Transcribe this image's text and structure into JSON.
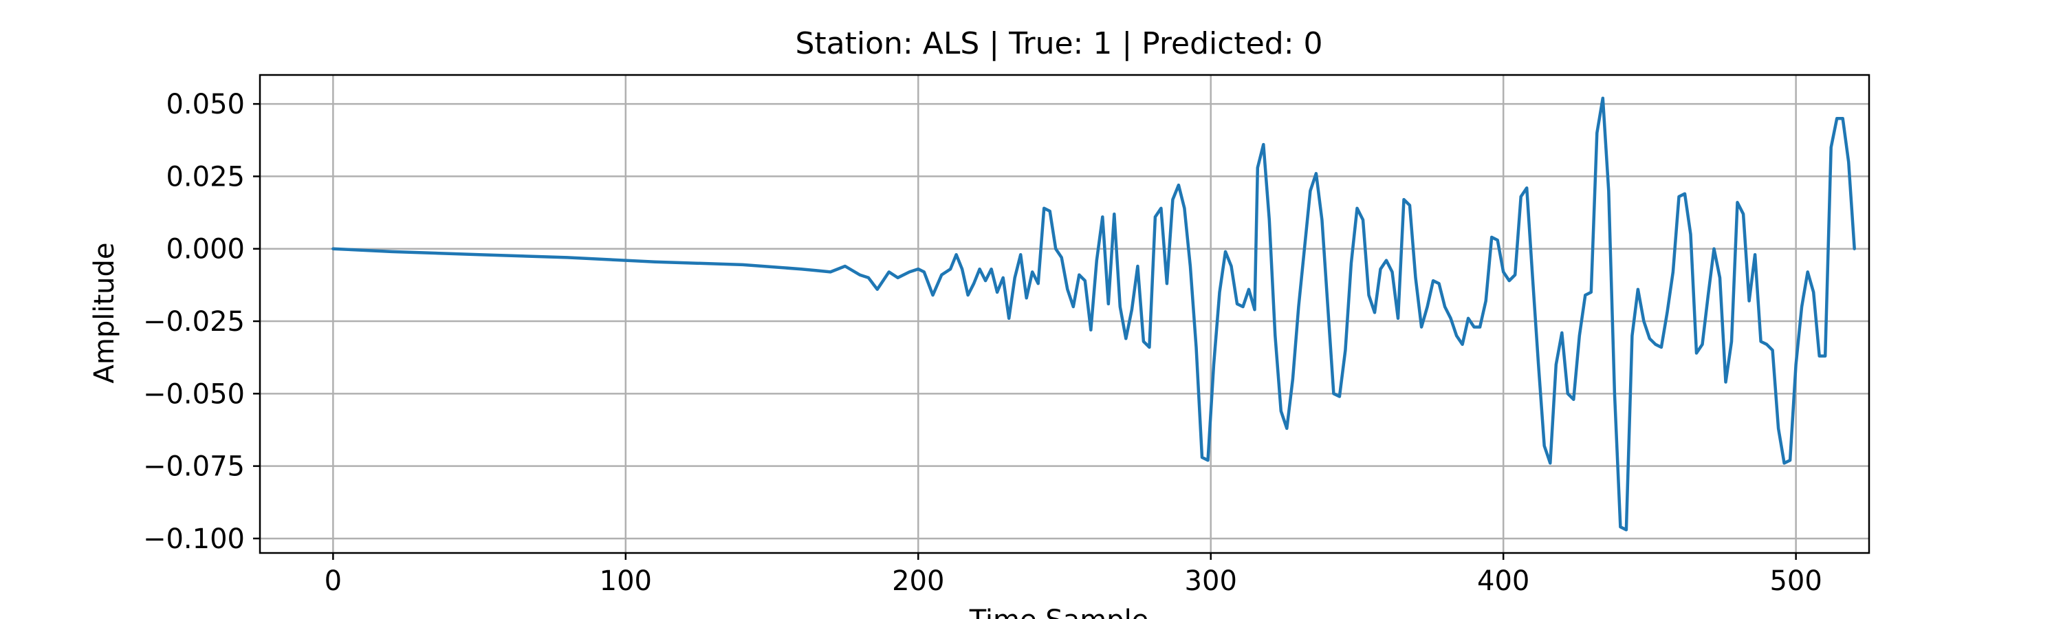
{
  "chart_data": {
    "type": "line",
    "title": "Station: ALS | True: 1 | Predicted: 0",
    "xlabel": "Time Sample",
    "ylabel": "Amplitude",
    "xlim": [
      -25,
      525
    ],
    "ylim": [
      -0.105,
      0.06
    ],
    "grid": true,
    "x_ticks": [
      0,
      100,
      200,
      300,
      400,
      500
    ],
    "x_tick_labels": [
      "0",
      "100",
      "200",
      "300",
      "400",
      "500"
    ],
    "y_ticks": [
      0.05,
      0.025,
      0.0,
      -0.025,
      -0.05,
      -0.075,
      -0.1
    ],
    "y_tick_labels": [
      "0.050",
      "0.025",
      "0.000",
      "−0.025",
      "−0.050",
      "−0.075",
      "−0.100"
    ],
    "series": [
      {
        "color": "#1f77b4",
        "points": [
          [
            0,
            0.0
          ],
          [
            20,
            -0.001
          ],
          [
            50,
            -0.002
          ],
          [
            80,
            -0.003
          ],
          [
            110,
            -0.0045
          ],
          [
            140,
            -0.0055
          ],
          [
            160,
            -0.007
          ],
          [
            165,
            -0.0075
          ],
          [
            170,
            -0.008
          ],
          [
            175,
            -0.006
          ],
          [
            180,
            -0.009
          ],
          [
            183,
            -0.01
          ],
          [
            186,
            -0.014
          ],
          [
            188,
            -0.011
          ],
          [
            190,
            -0.008
          ],
          [
            193,
            -0.01
          ],
          [
            197,
            -0.008
          ],
          [
            200,
            -0.007
          ],
          [
            202,
            -0.008
          ],
          [
            205,
            -0.016
          ],
          [
            208,
            -0.009
          ],
          [
            211,
            -0.007
          ],
          [
            213,
            -0.002
          ],
          [
            215,
            -0.007
          ],
          [
            217,
            -0.016
          ],
          [
            219,
            -0.012
          ],
          [
            221,
            -0.007
          ],
          [
            223,
            -0.011
          ],
          [
            225,
            -0.007
          ],
          [
            227,
            -0.015
          ],
          [
            229,
            -0.01
          ],
          [
            231,
            -0.024
          ],
          [
            233,
            -0.01
          ],
          [
            235,
            -0.002
          ],
          [
            237,
            -0.017
          ],
          [
            239,
            -0.008
          ],
          [
            241,
            -0.012
          ],
          [
            243,
            0.014
          ],
          [
            245,
            0.013
          ],
          [
            247,
            0.0
          ],
          [
            249,
            -0.003
          ],
          [
            251,
            -0.014
          ],
          [
            253,
            -0.02
          ],
          [
            255,
            -0.009
          ],
          [
            257,
            -0.011
          ],
          [
            259,
            -0.028
          ],
          [
            261,
            -0.004
          ],
          [
            263,
            0.011
          ],
          [
            265,
            -0.019
          ],
          [
            267,
            0.012
          ],
          [
            269,
            -0.02
          ],
          [
            271,
            -0.031
          ],
          [
            273,
            -0.021
          ],
          [
            275,
            -0.006
          ],
          [
            277,
            -0.032
          ],
          [
            279,
            -0.034
          ],
          [
            281,
            0.011
          ],
          [
            283,
            0.014
          ],
          [
            285,
            -0.012
          ],
          [
            287,
            0.017
          ],
          [
            289,
            0.022
          ],
          [
            291,
            0.014
          ],
          [
            293,
            -0.006
          ],
          [
            295,
            -0.034
          ],
          [
            297,
            -0.072
          ],
          [
            299,
            -0.073
          ],
          [
            301,
            -0.04
          ],
          [
            303,
            -0.015
          ],
          [
            305,
            -0.001
          ],
          [
            307,
            -0.006
          ],
          [
            309,
            -0.019
          ],
          [
            311,
            -0.02
          ],
          [
            313,
            -0.014
          ],
          [
            315,
            -0.021
          ],
          [
            316,
            0.028
          ],
          [
            318,
            0.036
          ],
          [
            320,
            0.01
          ],
          [
            322,
            -0.03
          ],
          [
            324,
            -0.056
          ],
          [
            326,
            -0.062
          ],
          [
            328,
            -0.045
          ],
          [
            330,
            -0.02
          ],
          [
            332,
            0.0
          ],
          [
            334,
            0.02
          ],
          [
            336,
            0.026
          ],
          [
            338,
            0.01
          ],
          [
            340,
            -0.02
          ],
          [
            342,
            -0.05
          ],
          [
            344,
            -0.051
          ],
          [
            346,
            -0.035
          ],
          [
            348,
            -0.005
          ],
          [
            350,
            0.014
          ],
          [
            352,
            0.01
          ],
          [
            354,
            -0.016
          ],
          [
            356,
            -0.022
          ],
          [
            358,
            -0.007
          ],
          [
            360,
            -0.004
          ],
          [
            362,
            -0.008
          ],
          [
            364,
            -0.024
          ],
          [
            366,
            0.017
          ],
          [
            368,
            0.015
          ],
          [
            370,
            -0.01
          ],
          [
            372,
            -0.027
          ],
          [
            374,
            -0.02
          ],
          [
            376,
            -0.011
          ],
          [
            378,
            -0.012
          ],
          [
            380,
            -0.02
          ],
          [
            382,
            -0.024
          ],
          [
            384,
            -0.03
          ],
          [
            386,
            -0.033
          ],
          [
            388,
            -0.024
          ],
          [
            390,
            -0.027
          ],
          [
            392,
            -0.027
          ],
          [
            394,
            -0.018
          ],
          [
            396,
            0.004
          ],
          [
            398,
            0.003
          ],
          [
            400,
            -0.008
          ],
          [
            402,
            -0.011
          ],
          [
            404,
            -0.009
          ],
          [
            406,
            0.018
          ],
          [
            408,
            0.021
          ],
          [
            410,
            -0.01
          ],
          [
            412,
            -0.04
          ],
          [
            414,
            -0.068
          ],
          [
            416,
            -0.074
          ],
          [
            418,
            -0.04
          ],
          [
            420,
            -0.029
          ],
          [
            422,
            -0.05
          ],
          [
            424,
            -0.052
          ],
          [
            426,
            -0.03
          ],
          [
            428,
            -0.016
          ],
          [
            430,
            -0.015
          ],
          [
            432,
            0.04
          ],
          [
            434,
            0.052
          ],
          [
            436,
            0.02
          ],
          [
            438,
            -0.05
          ],
          [
            440,
            -0.096
          ],
          [
            442,
            -0.097
          ],
          [
            444,
            -0.03
          ],
          [
            446,
            -0.014
          ],
          [
            448,
            -0.025
          ],
          [
            450,
            -0.031
          ],
          [
            452,
            -0.033
          ],
          [
            454,
            -0.034
          ],
          [
            456,
            -0.022
          ],
          [
            458,
            -0.008
          ],
          [
            460,
            0.018
          ],
          [
            462,
            0.019
          ],
          [
            464,
            0.005
          ],
          [
            466,
            -0.036
          ],
          [
            468,
            -0.033
          ],
          [
            470,
            -0.016
          ],
          [
            472,
            0.0
          ],
          [
            474,
            -0.01
          ],
          [
            476,
            -0.046
          ],
          [
            478,
            -0.032
          ],
          [
            480,
            0.016
          ],
          [
            482,
            0.012
          ],
          [
            484,
            -0.018
          ],
          [
            486,
            -0.002
          ],
          [
            488,
            -0.032
          ],
          [
            490,
            -0.033
          ],
          [
            492,
            -0.035
          ],
          [
            494,
            -0.062
          ],
          [
            496,
            -0.074
          ],
          [
            498,
            -0.073
          ],
          [
            500,
            -0.04
          ],
          [
            502,
            -0.02
          ],
          [
            504,
            -0.008
          ],
          [
            506,
            -0.015
          ],
          [
            508,
            -0.037
          ],
          [
            510,
            -0.037
          ],
          [
            512,
            0.035
          ],
          [
            514,
            0.045
          ],
          [
            516,
            0.045
          ],
          [
            518,
            0.03
          ],
          [
            520,
            0.0
          ]
        ]
      }
    ]
  }
}
